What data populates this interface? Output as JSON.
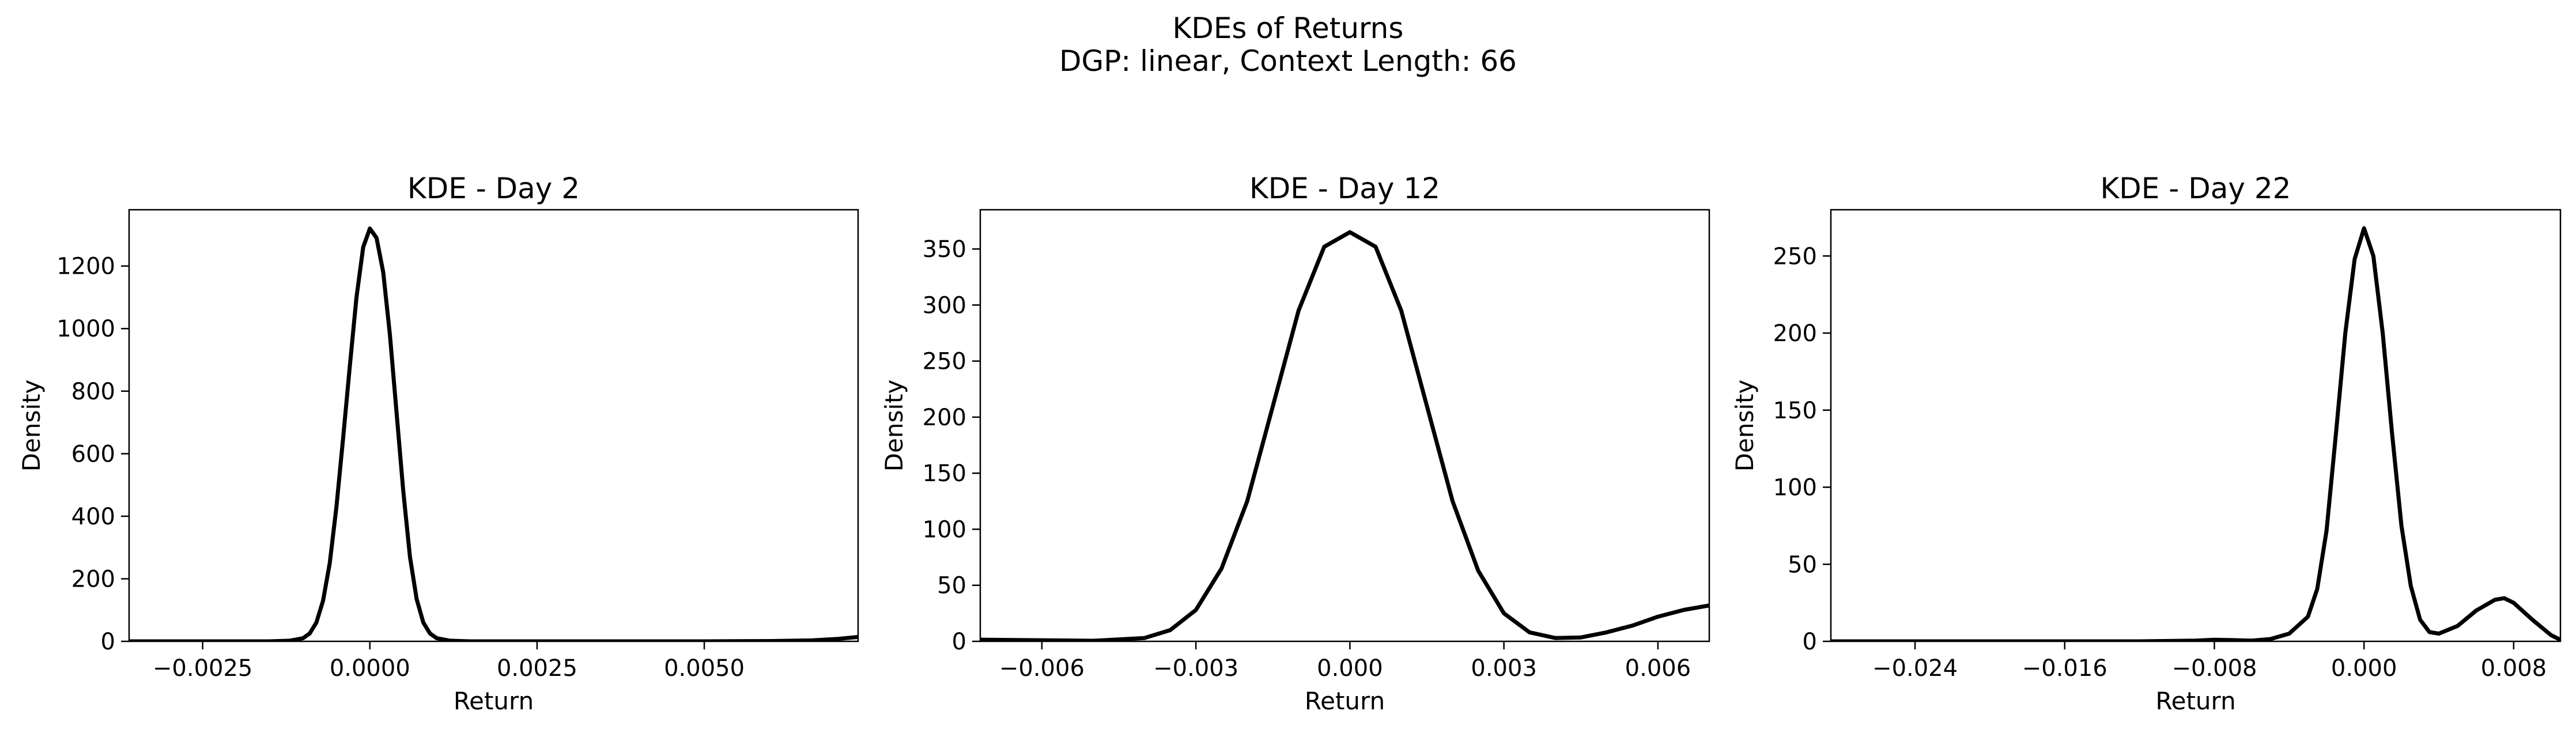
{
  "figure": {
    "title_line1": "KDEs of Returns",
    "title_line2": "DGP: linear, Context Length: 66",
    "line_color": "#000000"
  },
  "chart_data": [
    {
      "type": "line",
      "title": "KDE - Day 2",
      "xlabel": "Return",
      "ylabel": "Density",
      "xlim": [
        -0.0036,
        0.0073
      ],
      "ylim": [
        0,
        1380
      ],
      "xticks": [
        -0.0025,
        0.0,
        0.0025,
        0.005
      ],
      "xtick_labels": [
        "−0.0025",
        "0.0000",
        "0.0025",
        "0.0050"
      ],
      "yticks": [
        0,
        200,
        400,
        600,
        800,
        1000,
        1200
      ],
      "ytick_labels": [
        "0",
        "200",
        "400",
        "600",
        "800",
        "1000",
        "1200"
      ],
      "x": [
        -0.0036,
        -0.003,
        -0.0025,
        -0.002,
        -0.0015,
        -0.0012,
        -0.001,
        -0.0009,
        -0.0008,
        -0.0007,
        -0.0006,
        -0.0005,
        -0.0004,
        -0.0003,
        -0.0002,
        -0.0001,
        0.0,
        0.0001,
        0.0002,
        0.0003,
        0.0004,
        0.0005,
        0.0006,
        0.0007,
        0.0008,
        0.0009,
        0.001,
        0.0012,
        0.0015,
        0.002,
        0.003,
        0.004,
        0.005,
        0.006,
        0.0066,
        0.007,
        0.0073
      ],
      "y": [
        0,
        0,
        0,
        0,
        0,
        2,
        10,
        25,
        60,
        130,
        250,
        430,
        650,
        880,
        1100,
        1260,
        1320,
        1290,
        1180,
        980,
        730,
        480,
        270,
        135,
        60,
        25,
        10,
        2,
        0,
        0,
        0,
        0,
        0,
        1,
        3,
        8,
        14
      ]
    },
    {
      "type": "line",
      "title": "KDE - Day 12",
      "xlabel": "Return",
      "ylabel": "Density",
      "xlim": [
        -0.0072,
        0.007
      ],
      "ylim": [
        0,
        385
      ],
      "xticks": [
        -0.006,
        -0.003,
        0.0,
        0.003,
        0.006
      ],
      "xtick_labels": [
        "−0.006",
        "−0.003",
        "0.000",
        "0.003",
        "0.006"
      ],
      "yticks": [
        0,
        50,
        100,
        150,
        200,
        250,
        300,
        350
      ],
      "ytick_labels": [
        "0",
        "50",
        "100",
        "150",
        "200",
        "250",
        "300",
        "350"
      ],
      "x": [
        -0.0072,
        -0.006,
        -0.005,
        -0.004,
        -0.0035,
        -0.003,
        -0.0025,
        -0.002,
        -0.0015,
        -0.001,
        -0.0005,
        0.0,
        0.0005,
        0.001,
        0.0015,
        0.002,
        0.0025,
        0.003,
        0.0035,
        0.004,
        0.0045,
        0.005,
        0.0055,
        0.006,
        0.0065,
        0.007
      ],
      "y": [
        1.5,
        1,
        0.5,
        3,
        10,
        28,
        65,
        125,
        210,
        295,
        352,
        365,
        352,
        295,
        210,
        125,
        63,
        25,
        8,
        3,
        3.5,
        8,
        14,
        22,
        28,
        32
      ]
    },
    {
      "type": "line",
      "title": "KDE - Day 22",
      "xlabel": "Return",
      "ylabel": "Density",
      "xlim": [
        -0.0285,
        0.0105
      ],
      "ylim": [
        0,
        280
      ],
      "xticks": [
        -0.024,
        -0.016,
        -0.008,
        0.0,
        0.008
      ],
      "xtick_labels": [
        "−0.024",
        "−0.016",
        "−0.008",
        "0.000",
        "0.008"
      ],
      "yticks": [
        0,
        50,
        100,
        150,
        200,
        250
      ],
      "ytick_labels": [
        "0",
        "50",
        "100",
        "150",
        "200",
        "250"
      ],
      "x": [
        -0.0285,
        -0.02,
        -0.012,
        -0.009,
        -0.008,
        -0.007,
        -0.006,
        -0.005,
        -0.004,
        -0.003,
        -0.0025,
        -0.002,
        -0.0015,
        -0.001,
        -0.0005,
        0.0,
        0.0005,
        0.001,
        0.0015,
        0.002,
        0.0025,
        0.003,
        0.0035,
        0.004,
        0.005,
        0.006,
        0.007,
        0.0075,
        0.008,
        0.009,
        0.01,
        0.0105
      ],
      "y": [
        0,
        0,
        0,
        0.5,
        1,
        0.8,
        0.5,
        1.5,
        5,
        16,
        34,
        72,
        135,
        200,
        248,
        268,
        250,
        200,
        135,
        75,
        36,
        14,
        6,
        5,
        10,
        20,
        27,
        28,
        25,
        14,
        4,
        1
      ]
    }
  ]
}
